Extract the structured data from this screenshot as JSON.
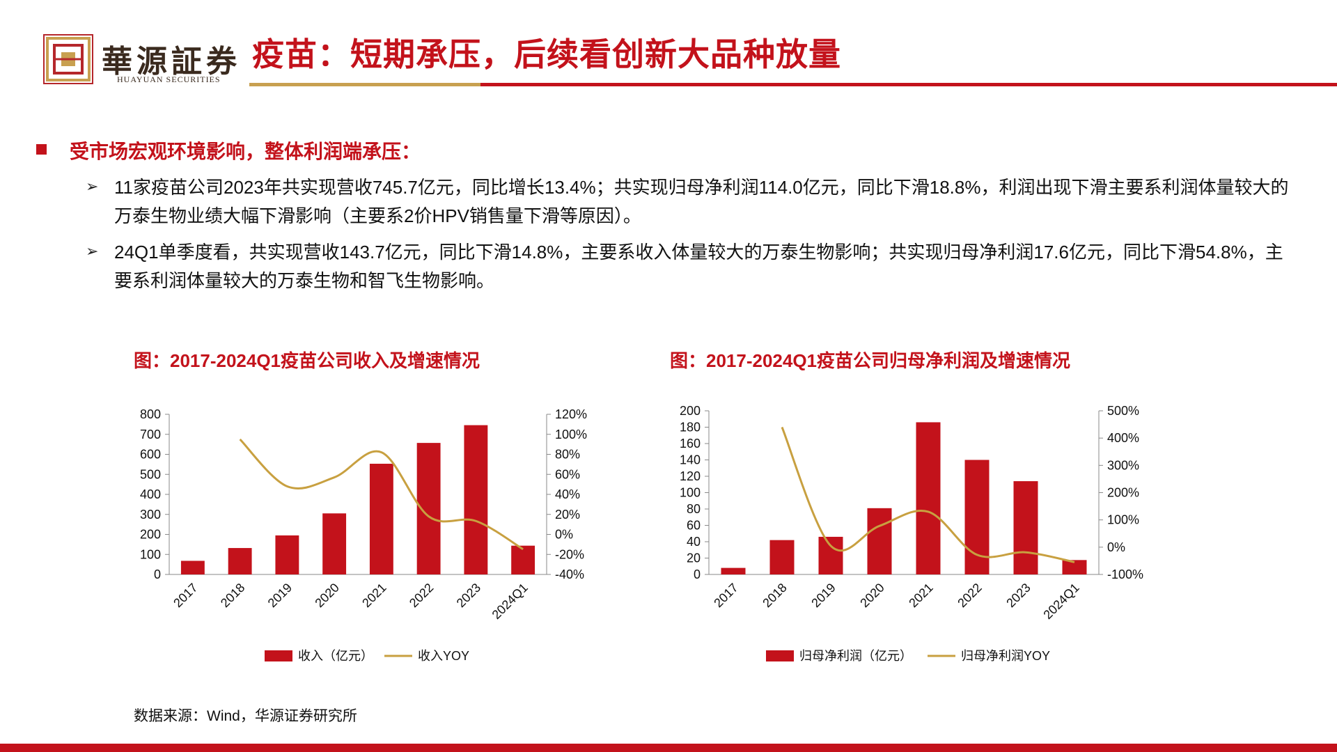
{
  "header": {
    "brand_cn": "華源証券",
    "brand_en": "HUAYUAN SECURITIES",
    "title": "疫苗：短期承压，后续看创新大品种放量"
  },
  "section": {
    "heading": "受市场宏观环境影响，整体利润端承压：",
    "points": [
      "11家疫苗公司2023年共实现营收745.7亿元，同比增长13.4%；共实现归母净利润114.0亿元，同比下滑18.8%，利润出现下滑主要系利润体量较大的万泰生物业绩大幅下滑影响（主要系2价HPV销售量下滑等原因）。",
      "24Q1单季度看，共实现营收143.7亿元，同比下滑14.8%，主要系收入体量较大的万泰生物影响；共实现归母净利润17.6亿元，同比下滑54.8%，主要系利润体量较大的万泰生物和智飞生物影响。"
    ],
    "arrow_glyph": "➢"
  },
  "source": "数据来源：Wind，华源证券研究所",
  "colors": {
    "accent": "#c3121b",
    "gold": "#c8a050",
    "line": "#c8a040"
  },
  "chart_data": [
    {
      "type": "bar",
      "title": "图：2017-2024Q1疫苗公司收入及增速情况",
      "categories": [
        "2017",
        "2018",
        "2019",
        "2020",
        "2021",
        "2022",
        "2023",
        "2024Q1"
      ],
      "ylim": [
        0,
        800
      ],
      "yticks": [
        "0",
        "100",
        "200",
        "300",
        "400",
        "500",
        "600",
        "700",
        "800"
      ],
      "y2lim": [
        -40,
        120
      ],
      "y2ticks": [
        "-40%",
        "-20%",
        "0%",
        "20%",
        "40%",
        "60%",
        "80%",
        "100%",
        "120%"
      ],
      "series": [
        {
          "name": "收入（亿元）",
          "kind": "bar",
          "axis": "left",
          "values": [
            68,
            132,
            195,
            305,
            553,
            657,
            745.7,
            143.7
          ]
        },
        {
          "name": "收入YOY",
          "kind": "line",
          "axis": "right",
          "values": [
            null,
            95,
            48,
            57,
            82,
            18,
            13.4,
            -14.8
          ]
        }
      ]
    },
    {
      "type": "bar",
      "title": "图：2017-2024Q1疫苗公司归母净利润及增速情况",
      "categories": [
        "2017",
        "2018",
        "2019",
        "2020",
        "2021",
        "2022",
        "2023",
        "2024Q1"
      ],
      "ylim": [
        0,
        200
      ],
      "yticks": [
        "0",
        "20",
        "40",
        "60",
        "80",
        "100",
        "120",
        "140",
        "160",
        "180",
        "200"
      ],
      "y2lim": [
        -100,
        500
      ],
      "y2ticks": [
        "-100%",
        "0%",
        "100%",
        "200%",
        "300%",
        "400%",
        "500%"
      ],
      "series": [
        {
          "name": "归母净利润（亿元）",
          "kind": "bar",
          "axis": "left",
          "values": [
            8,
            42,
            46,
            81,
            186,
            140,
            114,
            17.6
          ]
        },
        {
          "name": "归母净利润YOY",
          "kind": "line",
          "axis": "right",
          "values": [
            null,
            440,
            5,
            78,
            130,
            -28,
            -18.8,
            -54.8
          ]
        }
      ]
    }
  ]
}
